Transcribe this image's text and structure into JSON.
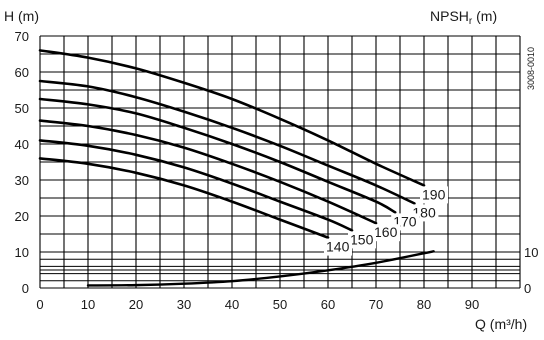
{
  "chart_data": {
    "type": "line",
    "y_label": "H (m)",
    "y2_label": "NPSH",
    "y2_label_sub": "r",
    "y2_label_unit": " (m)",
    "x_label": "Q (m³/h)",
    "code": "3008-0010",
    "xlim": [
      0,
      100
    ],
    "ylim": [
      0,
      70
    ],
    "x_ticks": [
      0,
      10,
      20,
      30,
      40,
      50,
      60,
      70,
      80,
      90
    ],
    "y_ticks": [
      0,
      10,
      20,
      30,
      40,
      50,
      60,
      70
    ],
    "y2_ticks": [
      {
        "value": 10,
        "label": "10"
      },
      {
        "value": 0,
        "label": "0"
      }
    ],
    "grid": "x every 5 m³/h, y every 5 m; NPSH zone y 0–10 every 2 m",
    "series": [
      {
        "name": "190",
        "x": [
          0,
          10,
          20,
          30,
          40,
          50,
          60,
          70,
          80
        ],
        "y": [
          66,
          64,
          61,
          57,
          52.5,
          47,
          41,
          34.5,
          28.5
        ]
      },
      {
        "name": "180",
        "x": [
          0,
          10,
          20,
          30,
          40,
          50,
          60,
          70,
          78
        ],
        "y": [
          57.5,
          56,
          53,
          49,
          44.5,
          39.5,
          34,
          28.5,
          23.5
        ]
      },
      {
        "name": "170",
        "x": [
          0,
          10,
          20,
          30,
          40,
          50,
          60,
          70,
          74
        ],
        "y": [
          52.5,
          51,
          48.5,
          44.5,
          40,
          35,
          29.5,
          24,
          21
        ]
      },
      {
        "name": "160",
        "x": [
          0,
          10,
          20,
          30,
          40,
          50,
          60,
          70
        ],
        "y": [
          46.5,
          45,
          42.5,
          39,
          34.5,
          29.5,
          24,
          18
        ]
      },
      {
        "name": "150",
        "x": [
          0,
          10,
          20,
          30,
          40,
          50,
          60,
          65
        ],
        "y": [
          41,
          39.5,
          37,
          33.5,
          29,
          24,
          19,
          16
        ]
      },
      {
        "name": "140",
        "x": [
          0,
          10,
          20,
          30,
          40,
          50,
          60
        ],
        "y": [
          36,
          34.5,
          32,
          28.5,
          24,
          19,
          14
        ]
      }
    ],
    "npsh_series": {
      "x": [
        10,
        20,
        30,
        40,
        50,
        60,
        70,
        82
      ],
      "y": [
        0.7,
        0.8,
        1.2,
        1.9,
        3.2,
        4.9,
        7,
        10.2
      ]
    }
  }
}
